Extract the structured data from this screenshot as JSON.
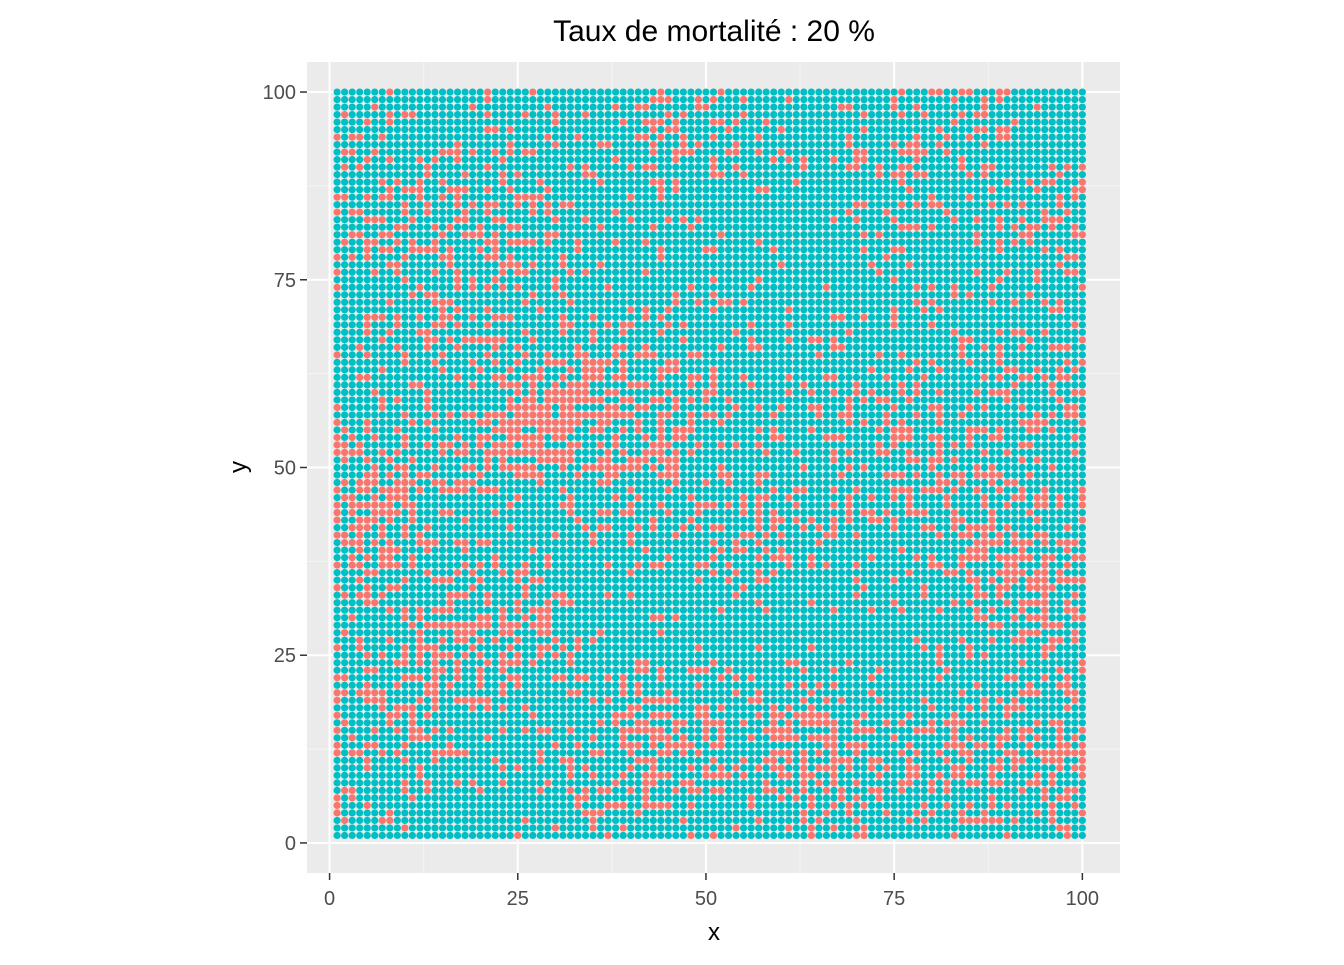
{
  "chart_data": {
    "type": "scatter",
    "title": "Taux de mortalité :  20 %",
    "xlabel": "x",
    "ylabel": "y",
    "xlim": [
      -3,
      105
    ],
    "ylim": [
      -4,
      104
    ],
    "x_ticks": [
      0,
      25,
      50,
      75,
      100
    ],
    "x_tick_labels": [
      "0",
      "25",
      "50",
      "75",
      "100"
    ],
    "y_ticks": [
      0,
      25,
      50,
      75,
      100
    ],
    "y_tick_labels": [
      "0",
      "25",
      "50",
      "75",
      "100"
    ],
    "grid": true,
    "legend": "none",
    "grid_extent": {
      "x": [
        1,
        100
      ],
      "y": [
        1,
        100
      ]
    },
    "background_color": "#EBEBEB",
    "colors": {
      "alive": "#00BFC4",
      "dead": "#F8766D"
    },
    "dead_fraction": 0.2,
    "dead_clusters": [
      {
        "x": 27,
        "y": 56,
        "spread": 6,
        "density": 0.75
      },
      {
        "x": 40,
        "y": 58,
        "spread": 8,
        "density": 0.55
      },
      {
        "x": 7,
        "y": 45,
        "spread": 6,
        "density": 0.7
      },
      {
        "x": 26,
        "y": 28,
        "spread": 5,
        "density": 0.55
      },
      {
        "x": 64,
        "y": 12,
        "spread": 6,
        "density": 0.6
      },
      {
        "x": 44,
        "y": 14,
        "spread": 6,
        "density": 0.45
      },
      {
        "x": 11,
        "y": 22,
        "spread": 7,
        "density": 0.4
      },
      {
        "x": 96,
        "y": 12,
        "spread": 6,
        "density": 0.45
      },
      {
        "x": 94,
        "y": 35,
        "spread": 6,
        "density": 0.45
      },
      {
        "x": 88,
        "y": 38,
        "spread": 8,
        "density": 0.3
      },
      {
        "x": 56,
        "y": 40,
        "spread": 5,
        "density": 0.35
      },
      {
        "x": 24,
        "y": 85,
        "spread": 6,
        "density": 0.35
      },
      {
        "x": 8,
        "y": 85,
        "spread": 6,
        "density": 0.3
      },
      {
        "x": 48,
        "y": 95,
        "spread": 6,
        "density": 0.3
      },
      {
        "x": 98,
        "y": 82,
        "spread": 5,
        "density": 0.35
      },
      {
        "x": 96,
        "y": 62,
        "spread": 6,
        "density": 0.3
      },
      {
        "x": 82,
        "y": 52,
        "spread": 7,
        "density": 0.3
      },
      {
        "x": 68,
        "y": 55,
        "spread": 8,
        "density": 0.2
      },
      {
        "x": 76,
        "y": 88,
        "spread": 6,
        "density": 0.22
      },
      {
        "x": 14,
        "y": 70,
        "spread": 6,
        "density": 0.3
      },
      {
        "x": 36,
        "y": 8,
        "spread": 5,
        "density": 0.3
      },
      {
        "x": 80,
        "y": 10,
        "spread": 6,
        "density": 0.25
      },
      {
        "x": 84,
        "y": 96,
        "spread": 5,
        "density": 0.25
      },
      {
        "x": 2,
        "y": 12,
        "spread": 5,
        "density": 0.2
      }
    ],
    "background_dead_density": 0.05
  }
}
